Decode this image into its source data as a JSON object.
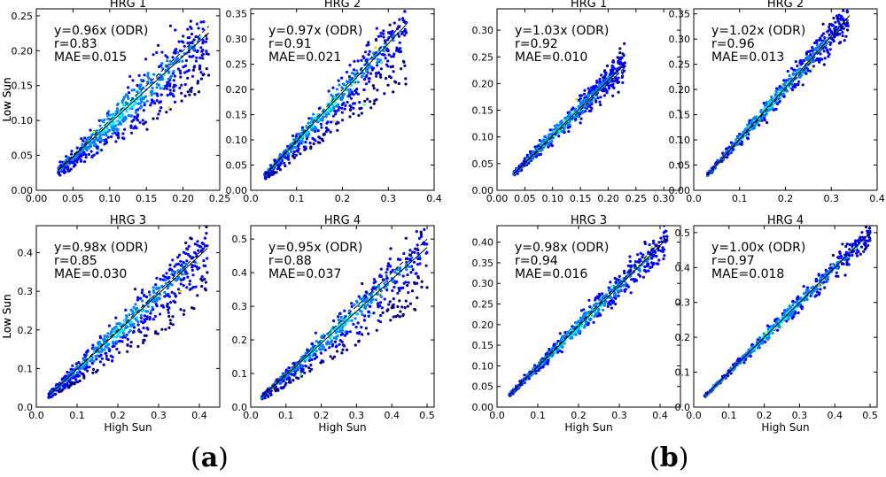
{
  "figure": {
    "panel_a_label": "a",
    "panel_b_label": "b",
    "colormap": [
      "#00007f",
      "#0000ff",
      "#0080ff",
      "#00e5ff",
      "#4cff9f",
      "#c8ff30",
      "#ffd000"
    ]
  },
  "chart_data": [
    {
      "type": "scatter",
      "panel": "a",
      "title": "HRG 1",
      "xlabel": "",
      "ylabel": "Low Sun",
      "xlim": [
        0,
        0.25
      ],
      "ylim": [
        0,
        0.26
      ],
      "xticks": [
        "0.00",
        "0.05",
        "0.10",
        "0.15",
        "0.20",
        "0.25"
      ],
      "yticks": [
        "0.00",
        "0.05",
        "0.10",
        "0.15",
        "0.20",
        "0.25"
      ],
      "xtick_values": [
        0,
        0.05,
        0.1,
        0.15,
        0.2,
        0.25
      ],
      "ytick_values": [
        0,
        0.05,
        0.1,
        0.15,
        0.2,
        0.25
      ],
      "annotation": [
        "y=0.96x (ODR)",
        "r=0.83",
        "MAE=0.015"
      ],
      "fit_slope": 0.96,
      "r": 0.83,
      "mae": 0.015,
      "data_range": [
        0.03,
        0.235
      ],
      "spread": 0.2,
      "secondary_cloud": true
    },
    {
      "type": "scatter",
      "panel": "a",
      "title": "HRG 2",
      "xlabel": "",
      "ylabel": "",
      "xlim": [
        0,
        0.4
      ],
      "ylim": [
        0,
        0.36
      ],
      "xticks": [
        "0.0",
        "0.1",
        "0.2",
        "0.3",
        "0.4"
      ],
      "yticks": [
        "0.00",
        "0.05",
        "0.10",
        "0.15",
        "0.20",
        "0.25",
        "0.30",
        "0.35"
      ],
      "xtick_values": [
        0,
        0.1,
        0.2,
        0.3,
        0.4
      ],
      "ytick_values": [
        0,
        0.05,
        0.1,
        0.15,
        0.2,
        0.25,
        0.3,
        0.35
      ],
      "annotation": [
        "y=0.97x (ODR)",
        "r=0.91",
        "MAE=0.021"
      ],
      "fit_slope": 0.97,
      "r": 0.91,
      "mae": 0.021,
      "data_range": [
        0.03,
        0.34
      ],
      "spread": 0.14,
      "secondary_cloud": true
    },
    {
      "type": "scatter",
      "panel": "a",
      "title": "HRG 3",
      "xlabel": "High Sun",
      "ylabel": "Low Sun",
      "xlim": [
        0,
        0.45
      ],
      "ylim": [
        0,
        0.47
      ],
      "xticks": [
        "0.0",
        "0.1",
        "0.2",
        "0.3",
        "0.4"
      ],
      "yticks": [
        "0.0",
        "0.1",
        "0.2",
        "0.3",
        "0.4"
      ],
      "xtick_values": [
        0,
        0.1,
        0.2,
        0.3,
        0.4
      ],
      "ytick_values": [
        0,
        0.1,
        0.2,
        0.3,
        0.4
      ],
      "annotation": [
        "y=0.98x (ODR)",
        "r=0.85",
        "MAE=0.030"
      ],
      "fit_slope": 0.98,
      "r": 0.85,
      "mae": 0.03,
      "data_range": [
        0.03,
        0.42
      ],
      "spread": 0.16,
      "secondary_cloud": true
    },
    {
      "type": "scatter",
      "panel": "a",
      "title": "HRG 4",
      "xlabel": "High Sun",
      "ylabel": "",
      "xlim": [
        0,
        0.52
      ],
      "ylim": [
        0,
        0.54
      ],
      "xticks": [
        "0.0",
        "0.1",
        "0.2",
        "0.3",
        "0.4",
        "0.5"
      ],
      "yticks": [
        "0.0",
        "0.1",
        "0.2",
        "0.3",
        "0.4",
        "0.5"
      ],
      "xtick_values": [
        0,
        0.1,
        0.2,
        0.3,
        0.4,
        0.5
      ],
      "ytick_values": [
        0,
        0.1,
        0.2,
        0.3,
        0.4,
        0.5
      ],
      "annotation": [
        "y=0.95x (ODR)",
        "r=0.88",
        "MAE=0.037"
      ],
      "fit_slope": 0.95,
      "r": 0.88,
      "mae": 0.037,
      "data_range": [
        0.03,
        0.5
      ],
      "spread": 0.14,
      "secondary_cloud": true
    },
    {
      "type": "scatter",
      "panel": "b",
      "title": "HRG 1",
      "xlabel": "",
      "ylabel": "Low Sun",
      "xlim": [
        0,
        0.33
      ],
      "ylim": [
        0,
        0.34
      ],
      "xticks": [
        "0.00",
        "0.05",
        "0.10",
        "0.15",
        "0.20",
        "0.25",
        "0.30"
      ],
      "yticks": [
        "0.00",
        "0.05",
        "0.10",
        "0.15",
        "0.20",
        "0.25",
        "0.30"
      ],
      "xtick_values": [
        0,
        0.05,
        0.1,
        0.15,
        0.2,
        0.25,
        0.3
      ],
      "ytick_values": [
        0,
        0.05,
        0.1,
        0.15,
        0.2,
        0.25,
        0.3
      ],
      "annotation": [
        "y=1.03x (ODR)",
        "r=0.92",
        "MAE=0.010"
      ],
      "fit_slope": 1.03,
      "r": 0.92,
      "mae": 0.01,
      "data_range": [
        0.03,
        0.23
      ],
      "spread": 0.12,
      "secondary_cloud": false
    },
    {
      "type": "scatter",
      "panel": "b",
      "title": "HRG 2",
      "xlabel": "",
      "ylabel": "",
      "xlim": [
        0,
        0.4
      ],
      "ylim": [
        0,
        0.36
      ],
      "xticks": [
        "0.0",
        "0.1",
        "0.2",
        "0.3",
        "0.4"
      ],
      "yticks": [
        "0.00",
        "0.05",
        "0.10",
        "0.15",
        "0.20",
        "0.25",
        "0.30",
        "0.35"
      ],
      "xtick_values": [
        0,
        0.1,
        0.2,
        0.3,
        0.4
      ],
      "ytick_values": [
        0,
        0.05,
        0.1,
        0.15,
        0.2,
        0.25,
        0.3,
        0.35
      ],
      "annotation": [
        "y=1.02x (ODR)",
        "r=0.96",
        "MAE=0.013"
      ],
      "fit_slope": 1.02,
      "r": 0.96,
      "mae": 0.013,
      "data_range": [
        0.03,
        0.34
      ],
      "spread": 0.09,
      "secondary_cloud": false
    },
    {
      "type": "scatter",
      "panel": "b",
      "title": "HRG 3",
      "xlabel": "High Sun",
      "ylabel": "Low Sun",
      "xlim": [
        0,
        0.45
      ],
      "ylim": [
        0,
        0.44
      ],
      "xticks": [
        "0.0",
        "0.1",
        "0.2",
        "0.3",
        "0.4"
      ],
      "yticks": [
        "0.00",
        "0.05",
        "0.10",
        "0.15",
        "0.20",
        "0.25",
        "0.30",
        "0.35",
        "0.40"
      ],
      "xtick_values": [
        0,
        0.1,
        0.2,
        0.3,
        0.4
      ],
      "ytick_values": [
        0,
        0.05,
        0.1,
        0.15,
        0.2,
        0.25,
        0.3,
        0.35,
        0.4
      ],
      "annotation": [
        "y=0.98x (ODR)",
        "r=0.94",
        "MAE=0.016"
      ],
      "fit_slope": 0.98,
      "r": 0.94,
      "mae": 0.016,
      "data_range": [
        0.03,
        0.42
      ],
      "spread": 0.1,
      "secondary_cloud": false
    },
    {
      "type": "scatter",
      "panel": "b",
      "title": "HRG 4",
      "xlabel": "High Sun",
      "ylabel": "",
      "xlim": [
        0,
        0.52
      ],
      "ylim": [
        0,
        0.52
      ],
      "xticks": [
        "0.0",
        "0.1",
        "0.2",
        "0.3",
        "0.4",
        "0.5"
      ],
      "yticks": [
        "0.0",
        "0.1",
        "0.2",
        "0.3",
        "0.4",
        "0.5"
      ],
      "xtick_values": [
        0,
        0.1,
        0.2,
        0.3,
        0.4,
        0.5
      ],
      "ytick_values": [
        0,
        0.1,
        0.2,
        0.3,
        0.4,
        0.5
      ],
      "annotation": [
        "y=1.00x (ODR)",
        "r=0.97",
        "MAE=0.018"
      ],
      "fit_slope": 1.0,
      "r": 0.97,
      "mae": 0.018,
      "data_range": [
        0.03,
        0.5
      ],
      "spread": 0.07,
      "secondary_cloud": false
    }
  ]
}
